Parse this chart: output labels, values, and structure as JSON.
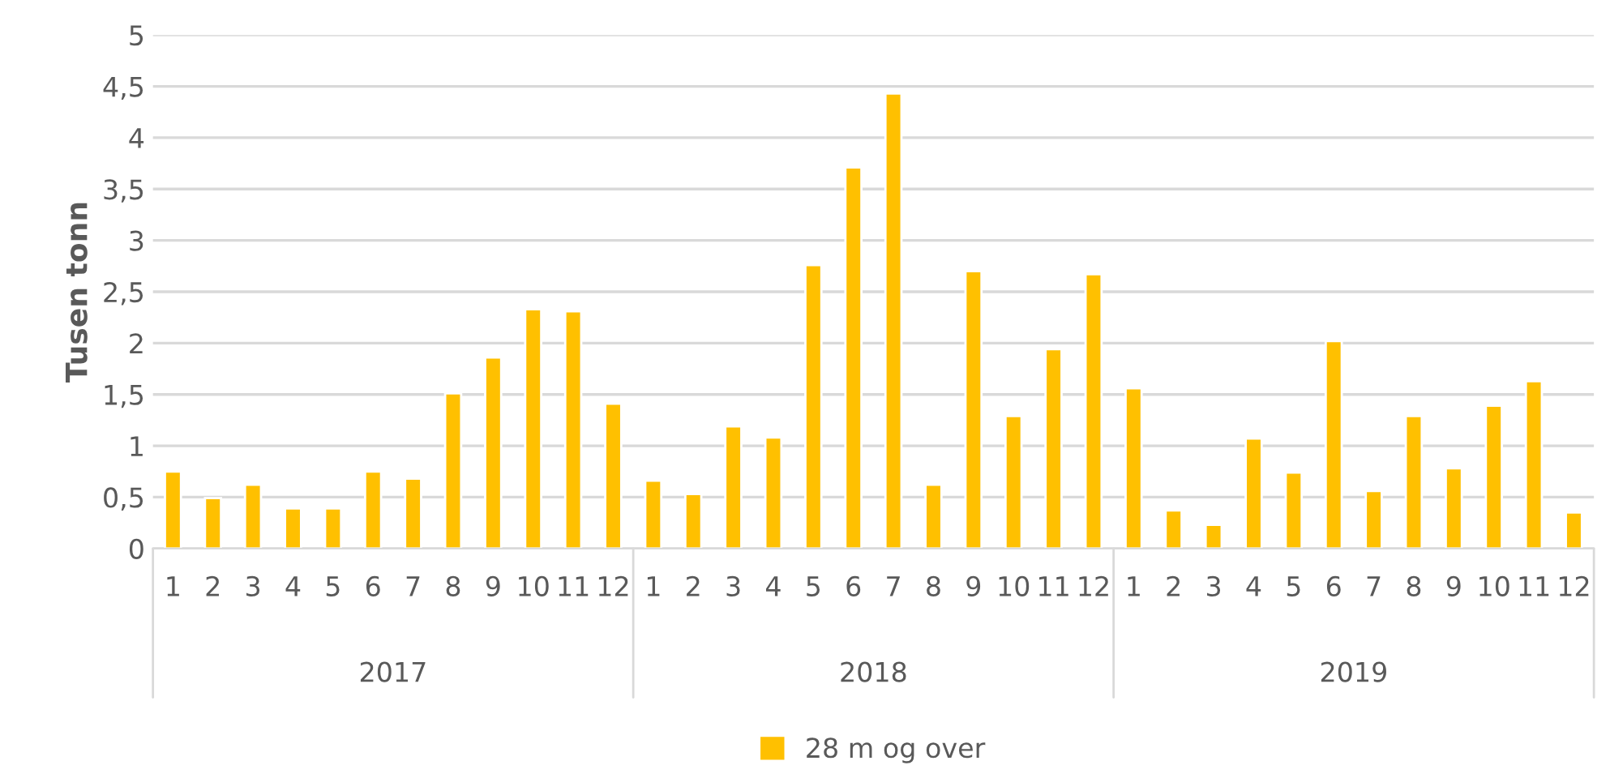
{
  "chart_data": {
    "type": "bar",
    "ylabel": "Tusen tonn",
    "categories": [
      "1",
      "2",
      "3",
      "4",
      "5",
      "6",
      "7",
      "8",
      "9",
      "10",
      "11",
      "12",
      "1",
      "2",
      "3",
      "4",
      "5",
      "6",
      "7",
      "8",
      "9",
      "10",
      "11",
      "12",
      "1",
      "2",
      "3",
      "4",
      "5",
      "6",
      "7",
      "8",
      "9",
      "10",
      "11",
      "12"
    ],
    "series": [
      {
        "name": "28 m og over",
        "color": "#ffc000",
        "values": [
          0.75,
          0.49,
          0.62,
          0.39,
          0.39,
          0.75,
          0.68,
          1.51,
          1.86,
          2.33,
          2.31,
          1.41,
          0.66,
          0.53,
          1.19,
          1.08,
          2.76,
          3.71,
          4.43,
          0.62,
          2.7,
          1.29,
          1.94,
          2.67,
          1.56,
          0.37,
          0.23,
          1.07,
          0.74,
          2.02,
          0.56,
          1.29,
          0.78,
          1.39,
          1.63,
          0.35
        ]
      }
    ],
    "annotations": [
      "2017",
      "2018",
      "2019"
    ],
    "ylim": [
      0,
      5
    ],
    "yticks": [
      0,
      {
        "value": 0.5,
        "label": "0,5"
      },
      1,
      {
        "value": 1.5,
        "label": "1,5"
      },
      2,
      {
        "value": 2.5,
        "label": "2,5"
      },
      3,
      {
        "value": 3.5,
        "label": "3,5"
      },
      4,
      {
        "value": 4.5,
        "label": "4,5"
      },
      5
    ],
    "grid": "y",
    "legend": "bottom"
  }
}
